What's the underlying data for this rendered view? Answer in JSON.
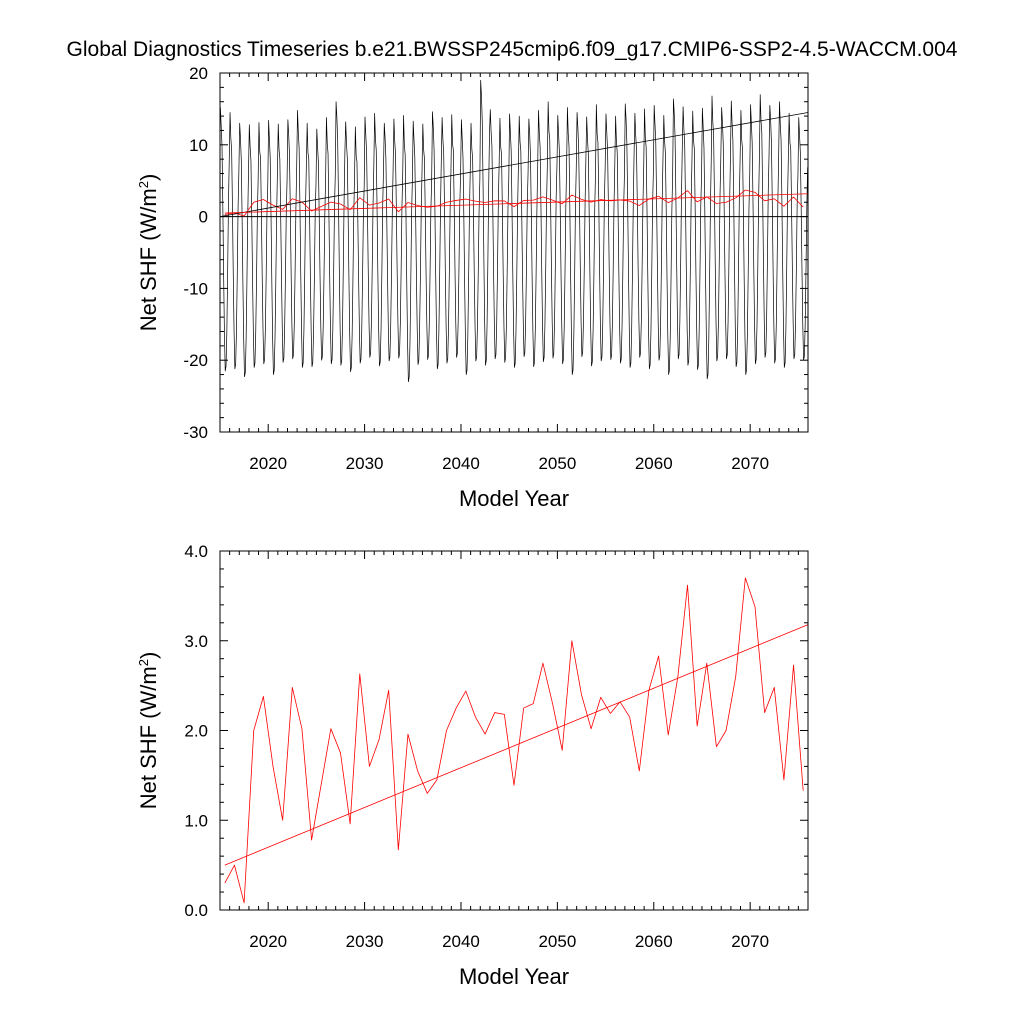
{
  "title": "Global Diagnostics Timeseries b.e21.BWSSP245cmip6.f09_g17.CMIP6-SSP2-4.5-WACCM.004",
  "colors": {
    "monthly": "#000000",
    "annual": "#ff0000",
    "axes": "#000000"
  },
  "chart_data": [
    {
      "id": "top",
      "type": "line",
      "xlabel": "Model Year",
      "ylabel_main": "Net SHF (W/m",
      "ylabel_sup": "2",
      "ylabel_end": ")",
      "xlim": [
        2015,
        2076
      ],
      "ylim": [
        -30,
        20
      ],
      "xticks": [
        2020,
        2030,
        2040,
        2050,
        2060,
        2070
      ],
      "xtick_labels": [
        "2020",
        "2030",
        "2040",
        "2050",
        "2060",
        "2070"
      ],
      "yticks": [
        -30,
        -20,
        -10,
        0,
        10,
        20
      ],
      "ytick_labels": [
        "-30",
        "-20",
        "-10",
        "0",
        "10",
        "20"
      ],
      "zero_line": 0,
      "series": [
        {
          "name": "monthly",
          "color": "#000000",
          "seasonal": {
            "start_year": 2015,
            "end_year": 2076,
            "peaks": [
              15.2,
              14.5,
              13.0,
              12.8,
              13.1,
              13.4,
              12.9,
              13.5,
              14.8,
              13.0,
              12.2,
              13.8,
              16.0,
              13.2,
              12.5,
              13.9,
              14.4,
              13.0,
              13.6,
              14.1,
              13.3,
              12.9,
              14.6,
              13.8,
              14.2,
              13.5,
              13.0,
              19.0,
              14.9,
              13.7,
              14.3,
              14.0,
              13.6,
              14.8,
              16.0,
              14.1,
              15.2,
              14.5,
              13.9,
              15.6,
              14.3,
              14.0,
              15.7,
              14.4,
              15.0,
              15.5,
              14.1,
              16.4,
              15.3,
              14.7,
              15.1,
              16.8,
              15.2,
              16.1,
              14.8,
              15.6,
              17.0,
              15.5,
              16.0,
              14.4,
              13.8
            ],
            "troughs": [
              -21.5,
              -21.2,
              -22.3,
              -21.0,
              -20.5,
              -22.0,
              -20.3,
              -19.8,
              -21.0,
              -20.9,
              -20.0,
              -20.5,
              -20.7,
              -21.6,
              -20.4,
              -19.6,
              -20.8,
              -20.1,
              -19.7,
              -23.0,
              -20.6,
              -19.9,
              -21.2,
              -20.4,
              -19.6,
              -22.0,
              -20.1,
              -20.7,
              -19.8,
              -20.3,
              -21.0,
              -19.5,
              -20.9,
              -20.2,
              -19.7,
              -20.5,
              -22.0,
              -19.5,
              -20.8,
              -20.1,
              -19.9,
              -20.4,
              -21.0,
              -19.6,
              -21.2,
              -20.0,
              -22.0,
              -19.8,
              -20.7,
              -21.3,
              -22.6,
              -20.1,
              -19.8,
              -20.9,
              -22.0,
              -20.5,
              -19.6,
              -20.4,
              -21.0,
              -19.8,
              -20.0
            ]
          }
        },
        {
          "name": "annual",
          "color": "#ff0000",
          "x": [
            2015.5,
            2016.5,
            2017.5,
            2018.5,
            2019.5,
            2020.5,
            2021.5,
            2022.5,
            2023.5,
            2024.5,
            2025.5,
            2026.5,
            2027.5,
            2028.5,
            2029.5,
            2030.5,
            2031.5,
            2032.5,
            2033.5,
            2034.5,
            2035.5,
            2036.5,
            2037.5,
            2038.5,
            2039.5,
            2040.5,
            2041.5,
            2042.5,
            2043.5,
            2044.5,
            2045.5,
            2046.5,
            2047.5,
            2048.5,
            2049.5,
            2050.5,
            2051.5,
            2052.5,
            2053.5,
            2054.5,
            2055.5,
            2056.5,
            2057.5,
            2058.5,
            2059.5,
            2060.5,
            2061.5,
            2062.5,
            2063.5,
            2064.5,
            2065.5,
            2066.5,
            2067.5,
            2068.5,
            2069.5,
            2070.5,
            2071.5,
            2072.5,
            2073.5,
            2074.5,
            2075.5
          ],
          "values": [
            0.3,
            0.5,
            0.08,
            2.0,
            2.38,
            1.6,
            1.0,
            2.48,
            2.02,
            0.78,
            1.4,
            2.02,
            1.75,
            0.96,
            2.63,
            1.6,
            1.9,
            2.45,
            0.67,
            1.96,
            1.55,
            1.3,
            1.45,
            2.0,
            2.25,
            2.44,
            2.15,
            1.96,
            2.2,
            2.18,
            1.39,
            2.25,
            2.3,
            2.75,
            2.3,
            1.78,
            3.0,
            2.4,
            2.02,
            2.37,
            2.19,
            2.32,
            2.15,
            1.55,
            2.45,
            2.83,
            1.95,
            2.6,
            3.62,
            2.05,
            2.75,
            1.82,
            2.0,
            2.6,
            3.7,
            3.38,
            2.2,
            2.48,
            1.45,
            2.73,
            1.33
          ]
        }
      ],
      "trends": [
        {
          "name": "monthly-trend",
          "color": "#000000",
          "x": [
            2015,
            2076
          ],
          "y": [
            0.0,
            14.5
          ]
        },
        {
          "name": "annual-trend",
          "color": "#ff0000",
          "x": [
            2015.5,
            2076
          ],
          "y": [
            0.5,
            3.18
          ]
        }
      ]
    },
    {
      "id": "bottom",
      "type": "line",
      "xlabel": "Model Year",
      "ylabel_main": "Net SHF (W/m",
      "ylabel_sup": "2",
      "ylabel_end": ")",
      "xlim": [
        2015,
        2076
      ],
      "ylim": [
        0,
        4
      ],
      "xticks": [
        2020,
        2030,
        2040,
        2050,
        2060,
        2070
      ],
      "xtick_labels": [
        "2020",
        "2030",
        "2040",
        "2050",
        "2060",
        "2070"
      ],
      "yticks": [
        0,
        1,
        2,
        3,
        4
      ],
      "ytick_labels": [
        "0.0",
        "1.0",
        "2.0",
        "3.0",
        "4.0"
      ],
      "series": [
        {
          "name": "annual",
          "color": "#ff0000",
          "x": [
            2015.5,
            2016.5,
            2017.5,
            2018.5,
            2019.5,
            2020.5,
            2021.5,
            2022.5,
            2023.5,
            2024.5,
            2025.5,
            2026.5,
            2027.5,
            2028.5,
            2029.5,
            2030.5,
            2031.5,
            2032.5,
            2033.5,
            2034.5,
            2035.5,
            2036.5,
            2037.5,
            2038.5,
            2039.5,
            2040.5,
            2041.5,
            2042.5,
            2043.5,
            2044.5,
            2045.5,
            2046.5,
            2047.5,
            2048.5,
            2049.5,
            2050.5,
            2051.5,
            2052.5,
            2053.5,
            2054.5,
            2055.5,
            2056.5,
            2057.5,
            2058.5,
            2059.5,
            2060.5,
            2061.5,
            2062.5,
            2063.5,
            2064.5,
            2065.5,
            2066.5,
            2067.5,
            2068.5,
            2069.5,
            2070.5,
            2071.5,
            2072.5,
            2073.5,
            2074.5,
            2075.5
          ],
          "values": [
            0.3,
            0.5,
            0.08,
            2.0,
            2.38,
            1.6,
            1.0,
            2.48,
            2.02,
            0.78,
            1.4,
            2.02,
            1.75,
            0.96,
            2.63,
            1.6,
            1.9,
            2.45,
            0.67,
            1.96,
            1.55,
            1.3,
            1.45,
            2.0,
            2.25,
            2.44,
            2.15,
            1.96,
            2.2,
            2.18,
            1.39,
            2.25,
            2.3,
            2.75,
            2.3,
            1.78,
            3.0,
            2.4,
            2.02,
            2.37,
            2.19,
            2.32,
            2.15,
            1.55,
            2.45,
            2.83,
            1.95,
            2.6,
            3.62,
            2.05,
            2.75,
            1.82,
            2.0,
            2.6,
            3.7,
            3.38,
            2.2,
            2.48,
            1.45,
            2.73,
            1.33
          ]
        }
      ],
      "trends": [
        {
          "name": "annual-trend",
          "color": "#ff0000",
          "x": [
            2015.5,
            2076
          ],
          "y": [
            0.5,
            3.18
          ]
        }
      ]
    }
  ]
}
